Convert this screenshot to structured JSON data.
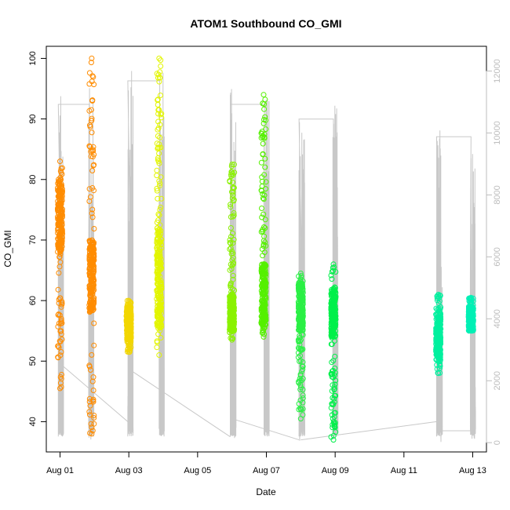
{
  "chart_data": {
    "type": "scatter",
    "title": "ATOM1 Southbound CO_GMI",
    "xlabel": "Date",
    "ylabel": "CO_GMI",
    "x_ticks": [
      {
        "label": "Aug 01",
        "day": 0
      },
      {
        "label": "Aug 03",
        "day": 2
      },
      {
        "label": "Aug 05",
        "day": 4
      },
      {
        "label": "Aug 07",
        "day": 6
      },
      {
        "label": "Aug 09",
        "day": 8
      },
      {
        "label": "Aug 11",
        "day": 10
      },
      {
        "label": "Aug 13",
        "day": 12
      }
    ],
    "xlim_days": [
      -0.4,
      12.4
    ],
    "ylim": [
      35,
      102
    ],
    "y_ticks": [
      40,
      50,
      60,
      70,
      80,
      90,
      100
    ],
    "y2lim": [
      -300,
      12800
    ],
    "y2_ticks": [
      0,
      2000,
      4000,
      6000,
      8000,
      10000,
      12000
    ],
    "y2_color": "#bdbdbd",
    "altitude_color": "#c8c8c8",
    "grid": false,
    "legend": "none",
    "series": [
      {
        "date": "Aug 01",
        "day": 0.0,
        "color": "#ff8c00",
        "ymin": 45.5,
        "ymax": 83,
        "core": [
          68,
          80
        ]
      },
      {
        "date": "Aug 01",
        "day": 0.92,
        "color": "#ff8c00",
        "ymin": 38,
        "ymax": 100,
        "core": [
          58,
          70
        ]
      },
      {
        "date": "Aug 03",
        "day": 2.0,
        "color": "#f2d600",
        "ymin": 51.5,
        "ymax": 60,
        "core": [
          53,
          59
        ]
      },
      {
        "date": "Aug 03",
        "day": 2.88,
        "color": "#e2f500",
        "ymin": 51,
        "ymax": 100,
        "core": [
          55,
          72
        ]
      },
      {
        "date": "Aug 06",
        "day": 5.0,
        "color": "#8af200",
        "ymin": 53.5,
        "ymax": 82.5,
        "core": [
          55,
          61
        ]
      },
      {
        "date": "Aug 06",
        "day": 5.92,
        "color": "#55f000",
        "ymin": 54,
        "ymax": 94,
        "core": [
          56,
          66
        ]
      },
      {
        "date": "Aug 08",
        "day": 7.0,
        "color": "#2af045",
        "ymin": 40.5,
        "ymax": 64.5,
        "core": [
          55,
          63
        ]
      },
      {
        "date": "Aug 08",
        "day": 7.95,
        "color": "#00f04a",
        "ymin": 37,
        "ymax": 66,
        "core": [
          54,
          62
        ]
      },
      {
        "date": "Aug 12",
        "day": 11.0,
        "color": "#00f09e",
        "ymin": 48,
        "ymax": 61,
        "core": [
          50,
          58
        ]
      },
      {
        "date": "Aug 12",
        "day": 11.95,
        "color": "#00f0b5",
        "ymin": 55,
        "ymax": 60.5,
        "core": [
          55,
          59
        ]
      }
    ],
    "altitude_flights": [
      {
        "start": -0.05,
        "end": 0.95,
        "ymax": 11500
      },
      {
        "start": 1.97,
        "end": 3.0,
        "ymax": 12300
      },
      {
        "start": 4.95,
        "end": 6.05,
        "ymax": 11500
      },
      {
        "start": 6.95,
        "end": 8.05,
        "ymax": 11000
      },
      {
        "start": 10.95,
        "end": 12.05,
        "ymax": 10400
      }
    ]
  }
}
